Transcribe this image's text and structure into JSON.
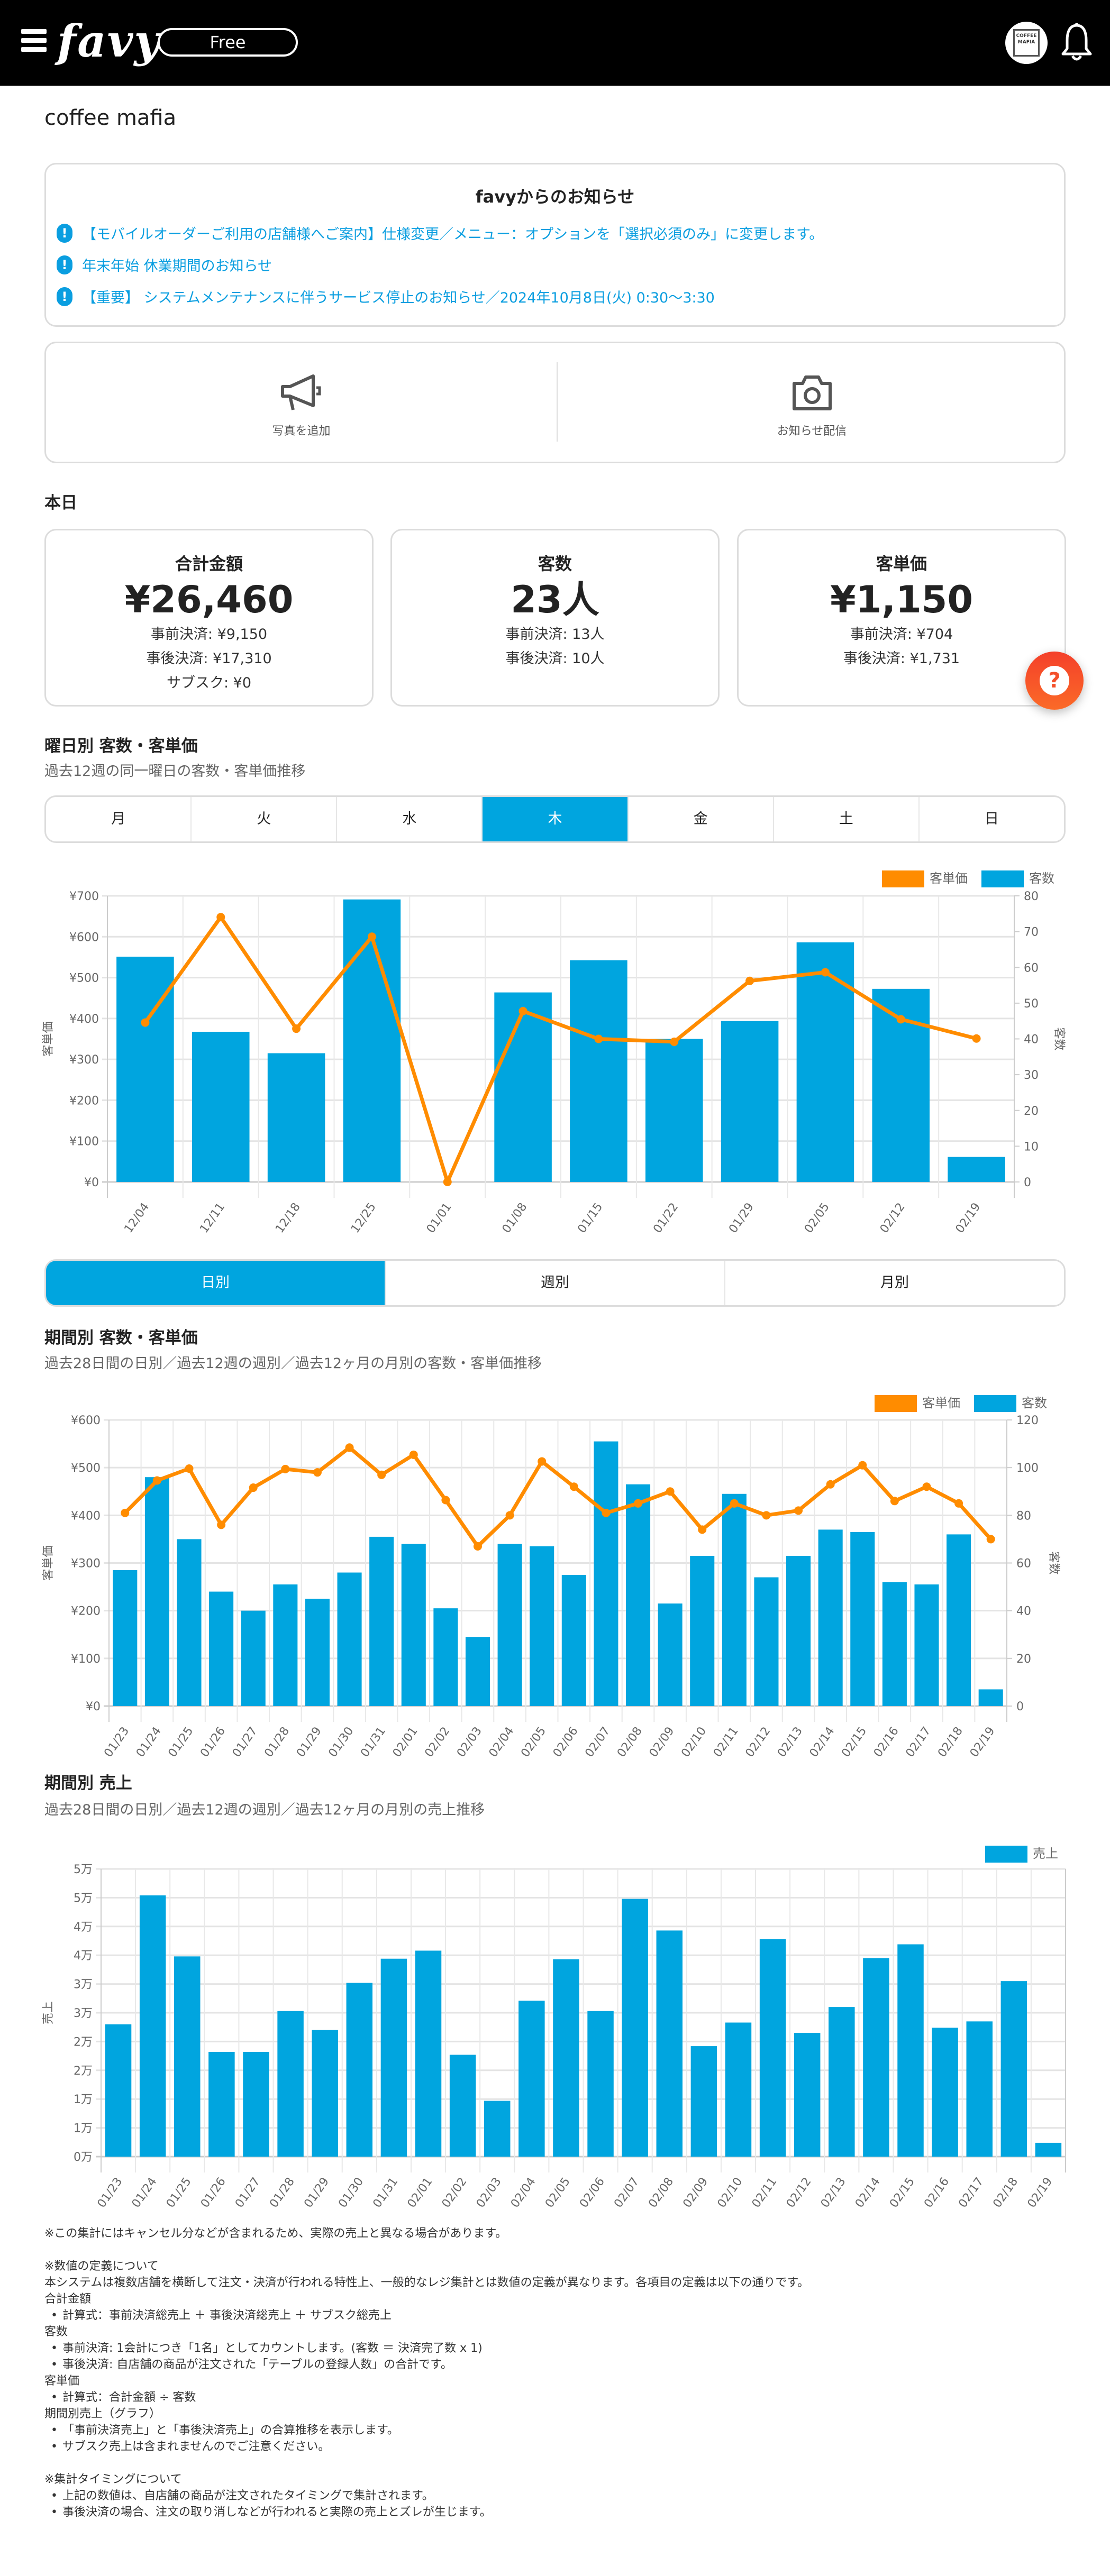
{
  "header": {
    "logo": "favy",
    "plan_badge": "Free",
    "avatar_text": "COFFEE MAFIA",
    "icons": [
      "hamburger-menu-icon",
      "bell-icon"
    ]
  },
  "store_name": "coffee mafia",
  "notices": {
    "title": "favyからのお知らせ",
    "items": [
      {
        "text": "【モバイルオーダーご利用の店舗様へご案内】仕様変更／メニュー：オプションを「選択必須のみ」に変更します。"
      },
      {
        "text": "年末年始 休業期間のお知らせ"
      },
      {
        "text": "【重要】 システムメンテナンスに伴うサービス停止のお知らせ／2024年10月8日(火) 0:30〜3:30"
      }
    ],
    "icon": "exclamation-circle-icon"
  },
  "actions": [
    {
      "label": "写真を追加",
      "icon": "megaphone-icon"
    },
    {
      "label": "お知らせ配信",
      "icon": "camera-icon"
    }
  ],
  "today": {
    "title": "本日",
    "cards": [
      {
        "title": "合計金額",
        "value": "¥26,460",
        "lines": [
          "事前決済: ¥9,150",
          "事後決済: ¥17,310",
          "サブスク: ¥0"
        ]
      },
      {
        "title": "客数",
        "value": "23人",
        "lines": [
          "事前決済: 13人",
          "事後決済: 10人"
        ]
      },
      {
        "title": "客単価",
        "value": "¥1,150",
        "lines": [
          "事前決済: ¥704",
          "事後決済: ¥1,731"
        ]
      }
    ]
  },
  "weekday_section": {
    "title": "曜日別 客数・客単価",
    "subtitle": "過去12週の同一曜日の客数・客単価推移",
    "tabs": [
      "月",
      "火",
      "水",
      "木",
      "金",
      "土",
      "日"
    ],
    "active_tab": "木"
  },
  "period_tabs": {
    "tabs": [
      "日別",
      "週別",
      "月別"
    ],
    "active_tab": "日別"
  },
  "period_section": {
    "title": "期間別 客数・客単価",
    "subtitle": "過去28日間の日別／過去12週の週別／過去12ヶ月の月別の客数・客単価推移"
  },
  "sales_section": {
    "title": "期間別 売上",
    "subtitle": "過去28日間の日別／過去12週の週別／過去12ヶ月の月別の売上推移"
  },
  "colors": {
    "accent": "#00a5df",
    "line": "#ff8c00",
    "notice_link": "#0a9ee0",
    "fab": "#f4502a"
  },
  "chart_data": [
    {
      "type": "bar+line",
      "legend": "top-right",
      "grid": true,
      "categories": [
        "12/04",
        "12/11",
        "12/18",
        "12/25",
        "01/01",
        "01/08",
        "01/15",
        "01/22",
        "01/29",
        "02/05",
        "02/12",
        "02/19"
      ],
      "series": [
        {
          "name": "客単価",
          "type": "line",
          "axis": "left",
          "color": "#ff8c00",
          "values": [
            390,
            648,
            375,
            600,
            0,
            418,
            350,
            343,
            492,
            513,
            398,
            351
          ]
        },
        {
          "name": "客数",
          "type": "bar",
          "axis": "right",
          "color": "#00a5df",
          "values": [
            63,
            42,
            36,
            79,
            0,
            53,
            62,
            40,
            45,
            67,
            54,
            7
          ]
        }
      ],
      "y_left": {
        "label": "客単価",
        "range": [
          0,
          700
        ],
        "tick_labels": [
          "¥0",
          "¥100",
          "¥200",
          "¥300",
          "¥400",
          "¥500",
          "¥600",
          "¥700"
        ]
      },
      "y_right": {
        "label": "客数",
        "range": [
          0,
          80
        ],
        "tick_labels": [
          "0",
          "10",
          "20",
          "30",
          "40",
          "50",
          "60",
          "70",
          "80"
        ]
      }
    },
    {
      "type": "bar+line",
      "legend": "top-right",
      "grid": true,
      "categories": [
        "01/23",
        "01/24",
        "01/25",
        "01/26",
        "01/27",
        "01/28",
        "01/29",
        "01/30",
        "01/31",
        "02/01",
        "02/02",
        "02/03",
        "02/04",
        "02/05",
        "02/06",
        "02/07",
        "02/08",
        "02/09",
        "02/10",
        "02/11",
        "02/12",
        "02/13",
        "02/14",
        "02/15",
        "02/16",
        "02/17",
        "02/18",
        "02/19"
      ],
      "series": [
        {
          "name": "客単価",
          "type": "line",
          "axis": "left",
          "color": "#ff8c00",
          "values": [
            405,
            473,
            498,
            380,
            458,
            497,
            490,
            542,
            485,
            527,
            432,
            335,
            400,
            513,
            460,
            405,
            425,
            450,
            370,
            425,
            400,
            410,
            465,
            505,
            430,
            460,
            425,
            350
          ]
        },
        {
          "name": "客数",
          "type": "bar",
          "axis": "right",
          "color": "#00a5df",
          "values": [
            57,
            96,
            70,
            48,
            40,
            51,
            45,
            56,
            71,
            68,
            41,
            29,
            68,
            67,
            55,
            111,
            93,
            43,
            63,
            89,
            54,
            63,
            74,
            73,
            52,
            51,
            72,
            7
          ]
        }
      ],
      "y_left": {
        "label": "客単価",
        "range": [
          0,
          600
        ],
        "tick_labels": [
          "¥0",
          "¥100",
          "¥200",
          "¥300",
          "¥400",
          "¥500",
          "¥600"
        ]
      },
      "y_right": {
        "label": "客数",
        "range": [
          0,
          120
        ],
        "tick_labels": [
          "0",
          "20",
          "40",
          "60",
          "80",
          "100",
          "120"
        ]
      }
    },
    {
      "type": "bar",
      "legend": "top-right",
      "grid": true,
      "categories": [
        "01/23",
        "01/24",
        "01/25",
        "01/26",
        "01/27",
        "01/28",
        "01/29",
        "01/30",
        "01/31",
        "02/01",
        "02/02",
        "02/03",
        "02/04",
        "02/05",
        "02/06",
        "02/07",
        "02/08",
        "02/09",
        "02/10",
        "02/11",
        "02/12",
        "02/13",
        "02/14",
        "02/15",
        "02/16",
        "02/17",
        "02/18",
        "02/19"
      ],
      "series": [
        {
          "name": "売上",
          "type": "bar",
          "axis": "left",
          "color": "#00a5df",
          "values": [
            23000,
            45400,
            34800,
            18200,
            18200,
            25300,
            22000,
            30200,
            34400,
            35800,
            17700,
            9700,
            27100,
            34300,
            25300,
            44800,
            39300,
            19200,
            23300,
            37800,
            21500,
            26000,
            34500,
            36900,
            22400,
            23500,
            30500,
            2400
          ]
        }
      ],
      "y_left": {
        "label": "売上",
        "range": [
          0,
          50000
        ],
        "tick_labels": [
          "0万",
          "1万",
          "1万",
          "2万",
          "2万",
          "3万",
          "3万",
          "4万",
          "4万",
          "5万",
          "5万"
        ]
      }
    }
  ],
  "footer": {
    "note": "※この集計にはキャンセル分などが含まれるため、実際の売上と異なる場合があります。",
    "definitions": {
      "heading": "※数値の定義について",
      "intro": "本システムは複数店舗を横断して注文・決済が行われる特性上、一般的なレジ集計とは数値の定義が異なります。各項目の定義は以下の通りです。",
      "items": [
        {
          "term": "合計金額",
          "bullets": [
            "計算式：事前決済総売上 ＋ 事後決済総売上 ＋ サブスク総売上"
          ]
        },
        {
          "term": "客数",
          "bullets": [
            "事前決済: 1会計につき「1名」としてカウントします。(客数 ＝ 決済完了数 x 1)",
            "事後決済: 自店舗の商品が注文された「テーブルの登録人数」の合計です。"
          ]
        },
        {
          "term": "客単価",
          "bullets": [
            "計算式：合計金額 ÷ 客数"
          ]
        },
        {
          "term": "期間別売上（グラフ）",
          "bullets": [
            "「事前決済売上」と「事後決済売上」の合算推移を表示します。",
            "サブスク売上は含まれませんのでご注意ください。"
          ]
        }
      ]
    },
    "timing": {
      "heading": "※集計タイミングについて",
      "bullets": [
        "上記の数値は、自店舗の商品が注文されたタイミングで集計されます。",
        "事後決済の場合、注文の取り消しなどが行われると実際の売上とズレが生じます。"
      ]
    }
  }
}
